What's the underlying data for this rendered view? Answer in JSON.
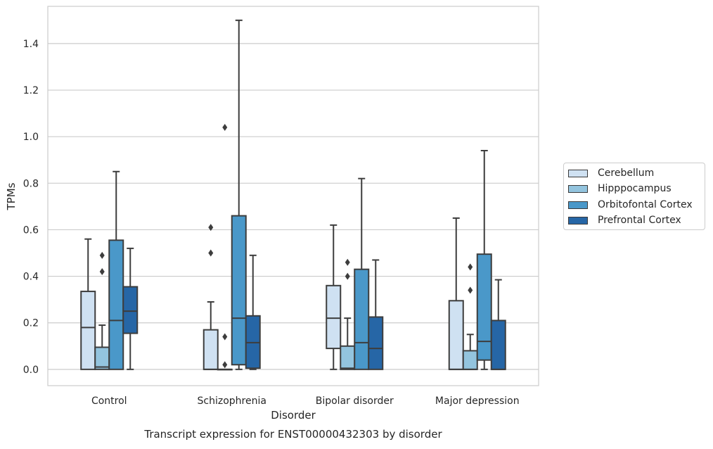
{
  "chart_data": {
    "type": "box",
    "title": "Transcript expression for ENST00000432303 by disorder",
    "xlabel": "Disorder",
    "ylabel": "TPMs",
    "ylim": [
      -0.07,
      1.56
    ],
    "yticks": [
      "0.0",
      "0.2",
      "0.4",
      "0.6",
      "0.8",
      "1.0",
      "1.2",
      "1.4"
    ],
    "grid": "horizontal",
    "legend_position": "right",
    "categories": [
      "Control",
      "Schizophrenia",
      "Bipolar disorder",
      "Major depression"
    ],
    "series": [
      {
        "name": "Cerebellum",
        "color": "#cfe1f2",
        "boxes": [
          {
            "whisker_low": 0.0,
            "q1": 0.0,
            "median": 0.18,
            "q3": 0.335,
            "whisker_high": 0.56,
            "outliers": []
          },
          {
            "whisker_low": 0.0,
            "q1": 0.0,
            "median": 0.0,
            "q3": 0.17,
            "whisker_high": 0.29,
            "outliers": [
              0.5,
              0.61
            ]
          },
          {
            "whisker_low": 0.0,
            "q1": 0.09,
            "median": 0.22,
            "q3": 0.36,
            "whisker_high": 0.62,
            "outliers": []
          },
          {
            "whisker_low": 0.0,
            "q1": 0.0,
            "median": 0.0,
            "q3": 0.295,
            "whisker_high": 0.65,
            "outliers": []
          }
        ]
      },
      {
        "name": "Hipppocampus",
        "color": "#93c4de",
        "boxes": [
          {
            "whisker_low": 0.0,
            "q1": 0.0,
            "median": 0.01,
            "q3": 0.095,
            "whisker_high": 0.19,
            "outliers": [
              0.42,
              0.49
            ]
          },
          {
            "whisker_low": 0.0,
            "q1": 0.0,
            "median": 0.0,
            "q3": 0.0,
            "whisker_high": 0.0,
            "outliers": [
              0.02,
              0.14,
              1.04
            ]
          },
          {
            "whisker_low": 0.0,
            "q1": 0.0,
            "median": 0.005,
            "q3": 0.1,
            "whisker_high": 0.22,
            "outliers": [
              0.4,
              0.46
            ]
          },
          {
            "whisker_low": 0.0,
            "q1": 0.0,
            "median": 0.0,
            "q3": 0.08,
            "whisker_high": 0.15,
            "outliers": [
              0.34,
              0.44
            ]
          }
        ]
      },
      {
        "name": "Orbitofontal Cortex",
        "color": "#4a98c9",
        "boxes": [
          {
            "whisker_low": 0.0,
            "q1": 0.0,
            "median": 0.21,
            "q3": 0.555,
            "whisker_high": 0.85,
            "outliers": []
          },
          {
            "whisker_low": 0.0,
            "q1": 0.02,
            "median": 0.22,
            "q3": 0.66,
            "whisker_high": 1.5,
            "outliers": []
          },
          {
            "whisker_low": 0.0,
            "q1": 0.0,
            "median": 0.115,
            "q3": 0.43,
            "whisker_high": 0.82,
            "outliers": []
          },
          {
            "whisker_low": 0.0,
            "q1": 0.04,
            "median": 0.12,
            "q3": 0.495,
            "whisker_high": 0.94,
            "outliers": []
          }
        ]
      },
      {
        "name": "Prefrontal Cortex",
        "color": "#2666a6",
        "boxes": [
          {
            "whisker_low": 0.0,
            "q1": 0.155,
            "median": 0.25,
            "q3": 0.355,
            "whisker_high": 0.52,
            "outliers": []
          },
          {
            "whisker_low": 0.0,
            "q1": 0.005,
            "median": 0.115,
            "q3": 0.23,
            "whisker_high": 0.49,
            "outliers": []
          },
          {
            "whisker_low": 0.0,
            "q1": 0.0,
            "median": 0.09,
            "q3": 0.225,
            "whisker_high": 0.47,
            "outliers": []
          },
          {
            "whisker_low": 0.0,
            "q1": 0.0,
            "median": 0.0,
            "q3": 0.21,
            "whisker_high": 0.385,
            "outliers": []
          }
        ]
      }
    ]
  }
}
